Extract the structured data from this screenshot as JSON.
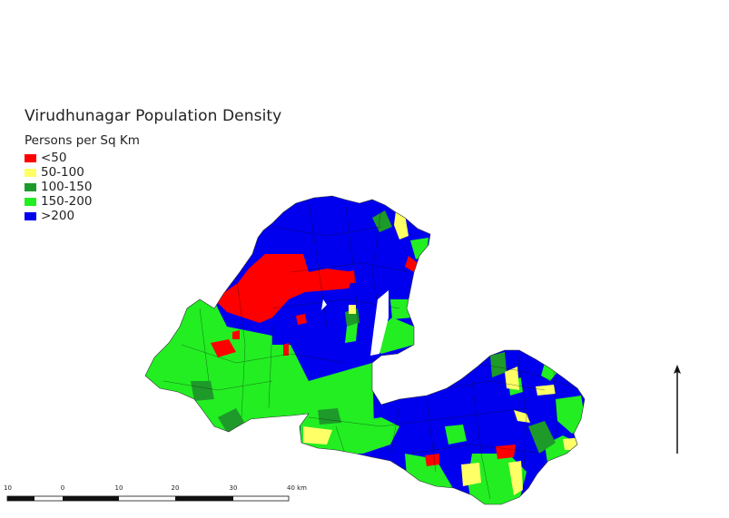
{
  "map": {
    "title": "Virudhunagar Population Density",
    "legend": {
      "title": "Persons per Sq Km",
      "items": [
        {
          "label": "<50",
          "color": "#ff0000"
        },
        {
          "label": "50-100",
          "color": "#ffff66"
        },
        {
          "label": "100-150",
          "color": "#1e9a2a"
        },
        {
          "label": "150-200",
          "color": "#22ee22"
        },
        {
          "label": ">200",
          "color": "#0000ee"
        }
      ]
    },
    "scale_bar": {
      "labels": [
        "10",
        "0",
        "10",
        "20",
        "30",
        "40 km"
      ]
    },
    "north_arrow": "north-arrow-icon"
  }
}
